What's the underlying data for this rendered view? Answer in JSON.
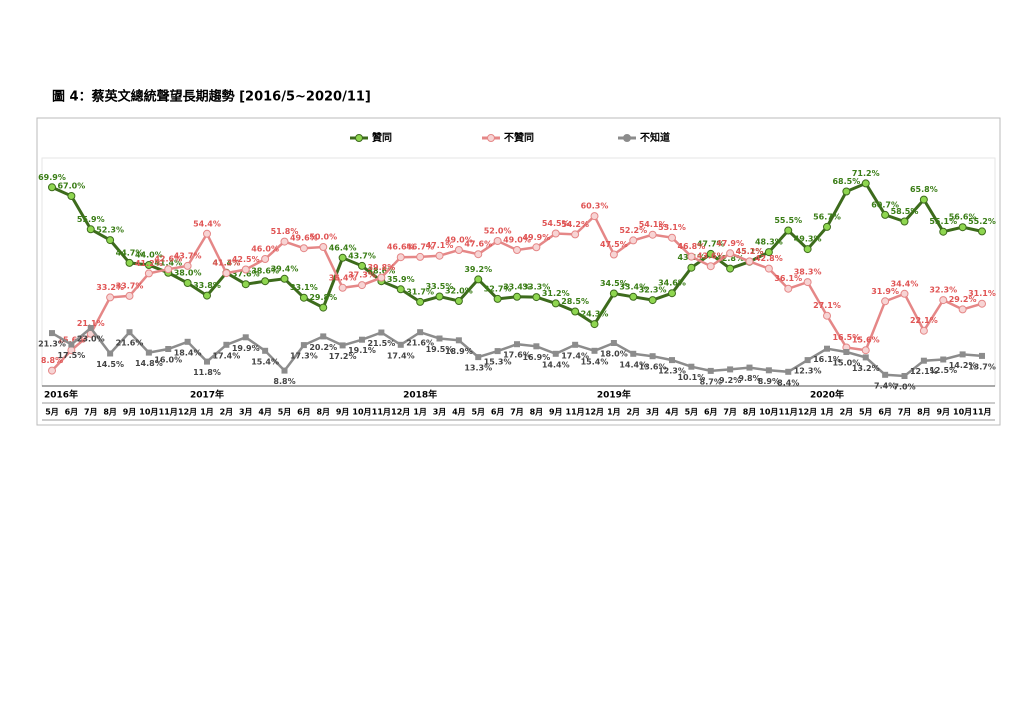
{
  "chart_data": {
    "type": "line",
    "title": "圖 4：蔡英文總統聲望長期趨勢  [2016/5~2020/11]",
    "categories": [
      "5月",
      "6月",
      "7月",
      "8月",
      "9月",
      "10月",
      "11月",
      "12月",
      "1月",
      "2月",
      "3月",
      "4月",
      "5月",
      "6月",
      "8月",
      "9月",
      "10月",
      "11月",
      "12月",
      "1月",
      "3月",
      "4月",
      "5月",
      "6月",
      "7月",
      "8月",
      "9月",
      "11月",
      "12月",
      "1月",
      "2月",
      "3月",
      "4月",
      "5月",
      "6月",
      "7月",
      "8月",
      "10月",
      "11月",
      "12月",
      "1月",
      "2月",
      "5月",
      "6月",
      "7月",
      "8月",
      "9月",
      "10月",
      "11月"
    ],
    "year_labels": [
      {
        "index": 0,
        "label": "2016年"
      },
      {
        "index": 8,
        "label": "2017年"
      },
      {
        "index": 19,
        "label": "2018年"
      },
      {
        "index": 29,
        "label": "2019年"
      },
      {
        "index": 40,
        "label": "2020年"
      }
    ],
    "ylim": [
      0,
      80
    ],
    "series": [
      {
        "name": "贊同",
        "color": "#3d6b1c",
        "marker": "#8fd650",
        "label_color": "#3a7d16",
        "values": [
          69.9,
          67.0,
          55.9,
          52.3,
          44.7,
          44.0,
          41.4,
          38.0,
          33.8,
          41.4,
          37.6,
          38.6,
          39.4,
          33.1,
          29.8,
          46.4,
          43.7,
          38.6,
          35.9,
          31.7,
          33.5,
          32.0,
          39.2,
          32.7,
          33.4,
          33.3,
          31.2,
          28.5,
          24.3,
          34.5,
          33.4,
          32.3,
          34.6,
          43.1,
          47.7,
          42.8,
          45.1,
          48.3,
          55.5,
          49.3,
          56.7,
          68.5,
          71.2,
          60.7,
          58.5,
          65.8,
          55.1,
          56.6,
          55.2
        ],
        "value_labels": [
          "69.9%",
          "67.0%",
          "55.9%",
          "52.3%",
          "44.7%",
          "44.0%",
          "41.4%",
          "38.0%",
          "33.8%",
          "41.4%",
          "37.6%",
          "38.6%",
          "39.4%",
          "33.1%",
          "29.8%",
          "46.4%",
          "43.7%",
          "38.6%",
          "35.9%",
          "31.7%",
          "33.5%",
          "32.0%",
          "39.2%",
          "32.7%",
          "33.4%",
          "33.3%",
          "31.2%",
          "28.5%",
          "24.3%",
          "34.5%",
          "33.4%",
          "32.3%",
          "34.6%",
          "43.1%",
          "47.7%",
          "42.8%",
          "45.1%",
          "48.3%",
          "55.5%",
          "49.3%",
          "56.7%",
          "68.5%",
          "71.2%",
          "60.7%",
          "58.5%",
          "65.8%",
          "55.1%",
          "56.6%",
          "55.2%"
        ]
      },
      {
        "name": "不贊同",
        "color": "#e58787",
        "marker": "#f7d4d4",
        "label_color": "#e05555",
        "values": [
          8.8,
          15.6,
          21.1,
          33.2,
          33.7,
          41.2,
          42.6,
          43.7,
          54.4,
          41.3,
          42.5,
          46.0,
          51.8,
          49.6,
          50.0,
          36.4,
          37.3,
          39.8,
          46.6,
          46.7,
          47.1,
          49.0,
          47.6,
          52.0,
          49.0,
          49.9,
          54.5,
          54.2,
          60.3,
          47.5,
          52.2,
          54.1,
          53.1,
          46.8,
          43.6,
          47.9,
          45.2,
          42.8,
          36.1,
          38.3,
          27.1,
          16.5,
          15.6,
          31.9,
          34.4,
          22.1,
          32.3,
          29.2,
          31.1
        ],
        "value_labels": [
          "8.8%",
          "15.6%",
          "21.1%",
          "33.2%",
          "33.7%",
          "41.2%",
          "42.6%",
          "43.7%",
          "54.4%",
          "41.3%",
          "42.5%",
          "46.0%",
          "51.8%",
          "49.6%",
          "50.0%",
          "36.4%",
          "37.3%",
          "39.8%",
          "46.6%",
          "46.7%",
          "47.1%",
          "49.0%",
          "47.6%",
          "52.0%",
          "49.0%",
          "49.9%",
          "54.5%",
          "54.2%",
          "60.3%",
          "47.5%",
          "52.2%",
          "54.1%",
          "53.1%",
          "46.8%",
          "43.6%",
          "47.9%",
          "45.2%",
          "42.8%",
          "36.1%",
          "38.3%",
          "27.1%",
          "16.5%",
          "15.6%",
          "31.9%",
          "34.4%",
          "22.1%",
          "32.3%",
          "29.2%",
          "31.1%"
        ]
      },
      {
        "name": "不知道",
        "color": "#8c8c8c",
        "marker": "#8c8c8c",
        "label_color": "#444444",
        "values": [
          21.3,
          17.5,
          23.0,
          14.5,
          21.6,
          14.8,
          16.0,
          18.4,
          11.8,
          17.4,
          19.9,
          15.4,
          8.8,
          17.3,
          20.2,
          17.2,
          19.1,
          21.5,
          17.4,
          21.6,
          19.5,
          18.9,
          13.3,
          15.3,
          17.6,
          16.9,
          14.4,
          17.4,
          15.4,
          18.0,
          14.4,
          13.6,
          12.3,
          10.1,
          8.7,
          9.2,
          9.8,
          8.9,
          8.4,
          12.3,
          16.1,
          15.0,
          13.2,
          7.4,
          7.0,
          12.1,
          12.5,
          14.2,
          13.7
        ],
        "value_labels": [
          "21.3%",
          "17.5%",
          "23.0%",
          "14.5%",
          "21.6%",
          "14.8%",
          "16.0%",
          "18.4%",
          "11.8%",
          "17.4%",
          "19.9%",
          "15.4%",
          "8.8%",
          "17.3%",
          "20.2%",
          "17.2%",
          "19.1%",
          "21.5%",
          "17.4%",
          "21.6%",
          "19.5%",
          "18.9%",
          "13.3%",
          "15.3%",
          "17.6%",
          "16.9%",
          "14.4%",
          "17.4%",
          "15.4%",
          "18.0%",
          "14.4%",
          "13.6%",
          "12.3%",
          "10.1%",
          "8.7%",
          "9.2%",
          "9.8%",
          "8.9%",
          "8.4%",
          "12.3%",
          "16.1%",
          "15.0%",
          "13.2%",
          "7.4%",
          "7.0%",
          "12.1%",
          "12.5%",
          "14.2%",
          "13.7%"
        ]
      }
    ]
  }
}
